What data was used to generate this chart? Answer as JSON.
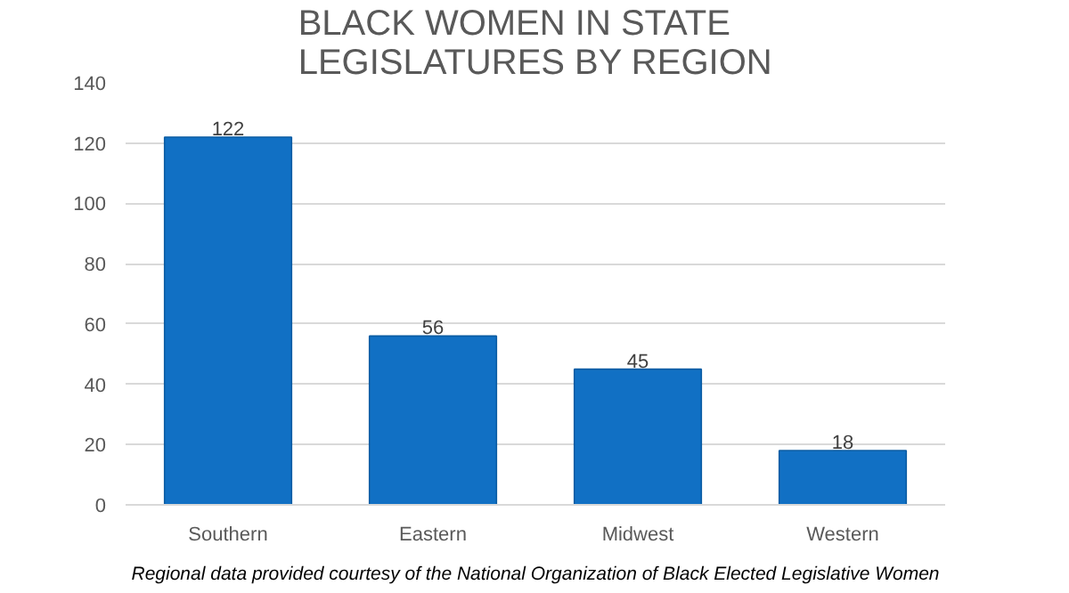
{
  "chart_data": {
    "type": "bar",
    "title": "BLACK WOMEN IN STATE\nLEGISLATURES BY REGION",
    "categories": [
      "Southern",
      "Eastern",
      "Midwest",
      "Western"
    ],
    "values": [
      122,
      56,
      45,
      18
    ],
    "color": "#1170c4",
    "ylim": [
      0,
      140
    ],
    "yticks": [
      0,
      20,
      40,
      60,
      80,
      100,
      120,
      140
    ],
    "grid": "y",
    "data_labels": true,
    "annotations": [
      "Regional data provided courtesy of the National Organization of Black Elected Legislative Women"
    ]
  }
}
